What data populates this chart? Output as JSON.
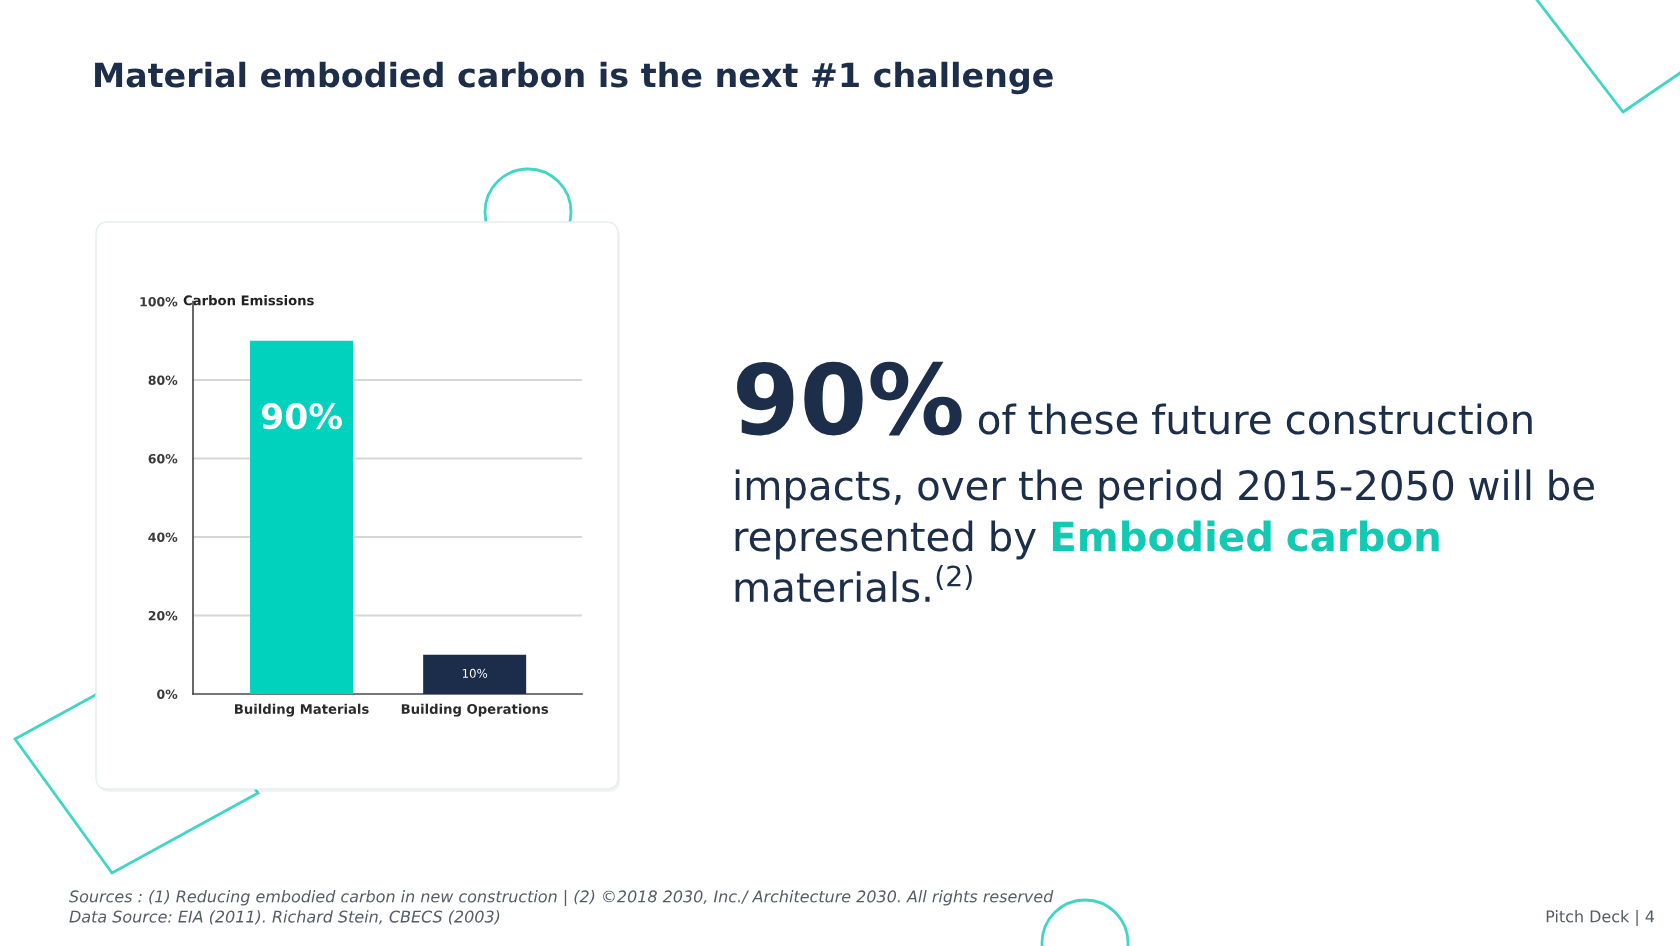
{
  "chart_data": {
    "type": "bar",
    "title": "Material embodied carbon is the next #1 challenge",
    "ylabel": "Carbon Emissions",
    "categories": [
      "Building Materials",
      "Building Operations"
    ],
    "values": [
      90,
      10
    ],
    "colors": [
      "#00d2be",
      "#1b2d4a"
    ],
    "value_labels": [
      "90%",
      "10%"
    ],
    "ylim": [
      0,
      100
    ],
    "yticks": [
      {
        "value": 0,
        "label": "0%"
      },
      {
        "value": 20,
        "label": "20%"
      },
      {
        "value": 40,
        "label": "40%"
      },
      {
        "value": 60,
        "label": "60%"
      },
      {
        "value": 80,
        "label": "80%"
      },
      {
        "value": 100,
        "label": "100%"
      }
    ],
    "grid": "y",
    "annotations": [
      "90%",
      "of these future construction impacts, over the period 2015-2050 will be represented by",
      "Embodied carbon",
      "materials.$^{(2)}$",
      "Sources : (1) Reducing embodied carbon in new construction | (2) ©2018 2030, Inc./ Architecture 2030. All rights reserved",
      "Data Source: EIA (2011). Richard Stein, CBECS (2003)",
      "Pitch Deck | 4"
    ]
  }
}
